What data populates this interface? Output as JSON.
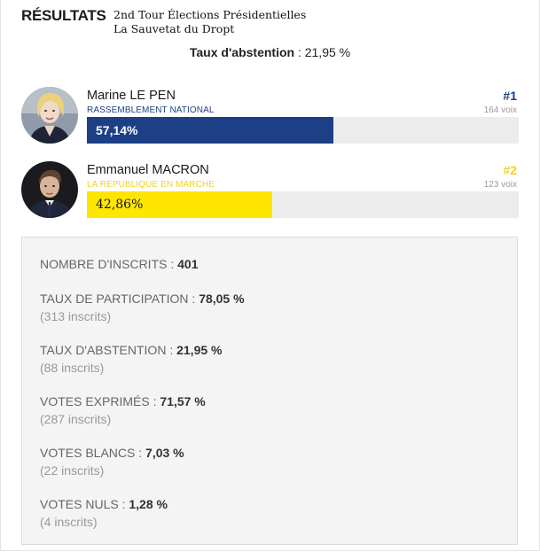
{
  "header": {
    "title": "RÉSULTATS",
    "subtitle_line1": "2nd Tour Élections Présidentielles",
    "subtitle_line2": "La Sauvetat du Dropt"
  },
  "abstention_summary": {
    "label": "Taux d'abstention",
    "value": "21,95 %"
  },
  "candidates": [
    {
      "name": "Marine LE PEN",
      "party": "RASSEMBLEMENT NATIONAL",
      "rank": "#1",
      "votes": "164 voix",
      "percent": "57,14%",
      "share": 0.5714,
      "bar_color": "#1c3f86",
      "rank_color": "#1c3f86"
    },
    {
      "name": "Emmanuel MACRON",
      "party": "LA RÉPUBLIQUE EN MARCHE",
      "rank": "#2",
      "votes": "123 voix",
      "percent": "42,86%",
      "share": 0.4286,
      "bar_color": "#ffe600",
      "rank_color": "#f2d21c"
    }
  ],
  "stats": [
    {
      "label": "NOMBRE D'INSCRITS",
      "value": "401",
      "sub": ""
    },
    {
      "label": "TAUX DE PARTICIPATION",
      "value": "78,05 %",
      "sub": "(313 inscrits)"
    },
    {
      "label": "TAUX D'ABSTENTION",
      "value": "21,95 %",
      "sub": "(88 inscrits)"
    },
    {
      "label": "VOTES EXPRIMÉS",
      "value": "71,57 %",
      "sub": "(287 inscrits)"
    },
    {
      "label": "VOTES BLANCS",
      "value": "7,03 %",
      "sub": "(22 inscrits)"
    },
    {
      "label": "VOTES NULS",
      "value": "1,28 %",
      "sub": "(4 inscrits)"
    }
  ]
}
